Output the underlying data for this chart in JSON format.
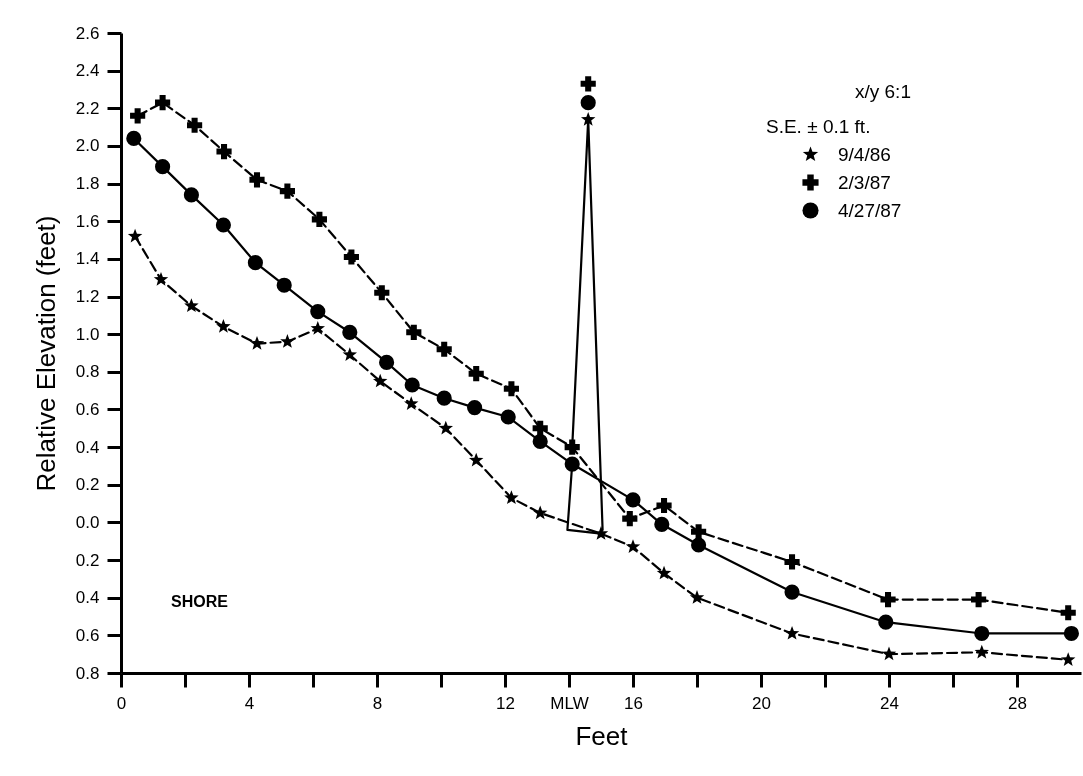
{
  "chart_data": {
    "type": "line",
    "xlabel": "Feet",
    "ylabel": "Relative Elevation (feet)",
    "xlim": [
      0,
      30
    ],
    "ylim": [
      -0.8,
      2.6
    ],
    "xticks": [
      0,
      {
        "value": 2,
        "label": null
      },
      4,
      {
        "value": 6,
        "label": null
      },
      8,
      {
        "value": 10,
        "label": null
      },
      12,
      {
        "value": 14,
        "label": "MLW"
      },
      16,
      {
        "value": 18,
        "label": null
      },
      20,
      {
        "value": 22,
        "label": null
      },
      24,
      {
        "value": 26,
        "label": null
      },
      28
    ],
    "yticks": [
      {
        "value": -0.8,
        "label": "0.8"
      },
      {
        "value": -0.6,
        "label": "0.6"
      },
      {
        "value": -0.4,
        "label": "0.4"
      },
      {
        "value": -0.2,
        "label": "0.2"
      },
      {
        "value": 0,
        "label": "0.0"
      },
      0.2,
      0.4,
      0.6,
      0.8,
      {
        "value": 1,
        "label": "1.0"
      },
      1.2,
      1.4,
      1.6,
      1.8,
      {
        "value": 2,
        "label": "2.0"
      },
      2.2,
      2.4,
      2.6
    ],
    "grid": false,
    "legend": "top right",
    "annotations": [
      "x/y 6:1",
      "S.E. ± 0.1 ft.",
      "SHORE"
    ],
    "series": [
      {
        "name": "9/4/86",
        "color": "#000000",
        "marker": "star",
        "line_style": "dashed",
        "x": [
          0.44,
          1.25,
          2.2,
          3.2,
          4.25,
          5.2,
          6.15,
          7.15,
          8.1,
          9.07,
          10.15,
          11.1,
          12.2,
          13.1,
          15.0,
          16.0,
          16.97,
          18.0,
          20.97,
          24.0,
          26.9,
          29.6
        ],
        "values": [
          1.52,
          1.29,
          1.15,
          1.04,
          0.95,
          0.96,
          1.03,
          0.89,
          0.75,
          0.63,
          0.5,
          0.33,
          0.13,
          0.05,
          -0.06,
          -0.13,
          -0.27,
          -0.4,
          -0.59,
          -0.7,
          -0.69,
          -0.73
        ]
      },
      {
        "name": "2/3/87",
        "color": "#000000",
        "marker": "cross",
        "line_style": "dashed",
        "x": [
          0.52,
          1.3,
          2.3,
          3.22,
          4.25,
          5.2,
          6.2,
          7.2,
          8.15,
          9.15,
          10.1,
          11.1,
          12.2,
          13.1,
          14.1,
          15.9,
          16.97,
          18.05,
          20.97,
          23.97,
          26.8,
          29.6
        ],
        "values": [
          2.16,
          2.23,
          2.11,
          1.97,
          1.82,
          1.76,
          1.61,
          1.41,
          1.22,
          1.01,
          0.92,
          0.79,
          0.71,
          0.5,
          0.4,
          0.02,
          0.09,
          -0.05,
          -0.21,
          -0.41,
          -0.41,
          -0.48
        ]
      },
      {
        "name": "4/27/87",
        "color": "#000000",
        "marker": "circle",
        "line_style": "solid",
        "x": [
          0.4,
          1.3,
          2.2,
          3.2,
          4.2,
          5.1,
          6.15,
          7.15,
          8.3,
          9.1,
          10.1,
          11.05,
          12.1,
          13.1,
          14.1,
          16.0,
          16.9,
          18.05,
          20.97,
          23.9,
          26.9,
          29.7
        ],
        "values": [
          2.04,
          1.89,
          1.74,
          1.58,
          1.38,
          1.26,
          1.12,
          1.01,
          0.85,
          0.73,
          0.66,
          0.61,
          0.56,
          0.43,
          0.31,
          0.12,
          -0.01,
          -0.12,
          -0.37,
          -0.53,
          -0.59,
          -0.59
        ]
      },
      {
        "type": "scatter",
        "color": "#000000",
        "marker": "star",
        "x": [
          14.6
        ],
        "values": [
          2.14
        ]
      },
      {
        "type": "scatter",
        "color": "#000000",
        "marker": "cross",
        "x": [
          14.6
        ],
        "values": [
          2.33
        ]
      },
      {
        "type": "scatter",
        "color": "#000000",
        "marker": "circle",
        "x": [
          14.6
        ],
        "values": [
          2.23
        ]
      },
      {
        "color": "#000000",
        "marker": "none",
        "line_style": "solid",
        "x": [
          14.1,
          13.95,
          15.0
        ],
        "values": [
          0.31,
          -0.04,
          -0.06
        ]
      },
      {
        "color": "#000000",
        "marker": "none",
        "line_style": "solid",
        "x": [
          14.1,
          14.6,
          15.05
        ],
        "values": [
          0.4,
          2.14,
          -0.04
        ]
      }
    ]
  }
}
